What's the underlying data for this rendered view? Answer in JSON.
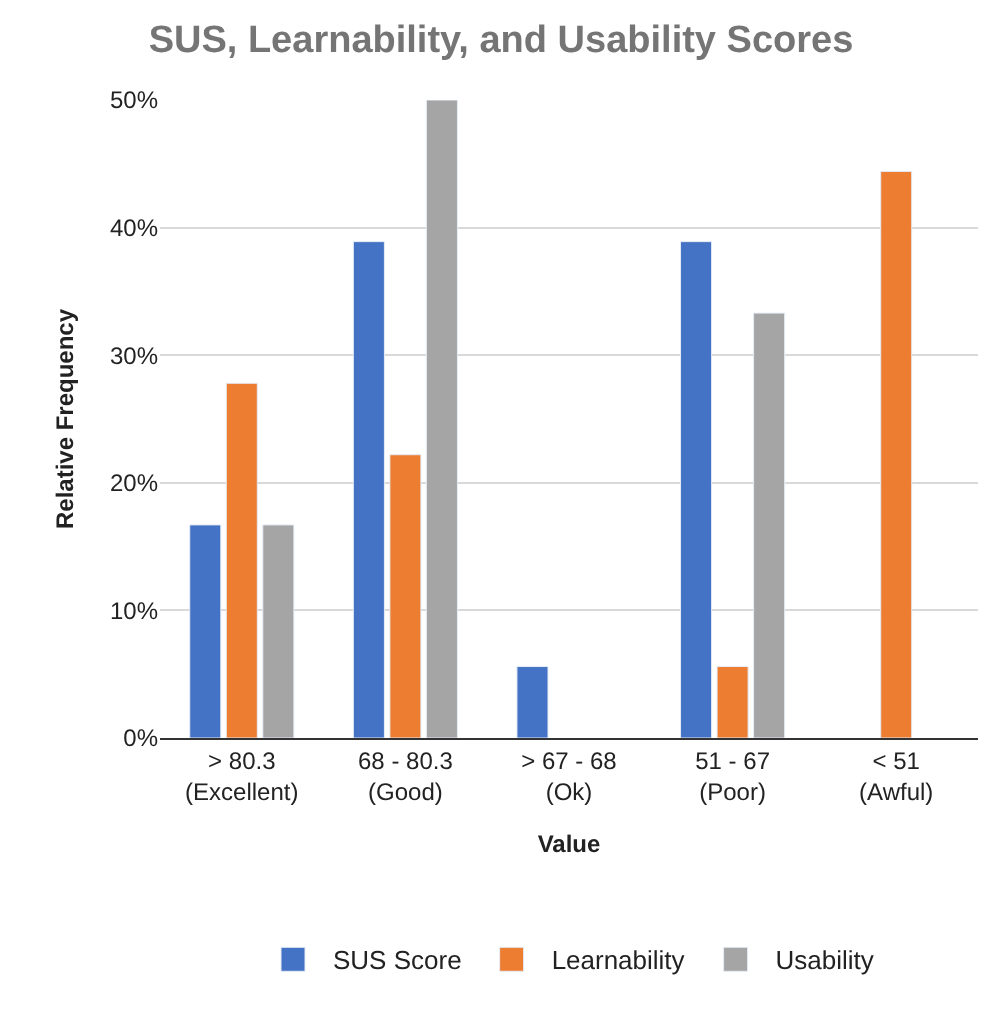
{
  "chart_data": {
    "type": "bar",
    "title": "SUS, Learnability, and Usability Scores",
    "xlabel": "Value",
    "ylabel": "Relative Frequency",
    "categories": [
      "> 80.3\n(Excellent)",
      "68 - 80.3\n(Good)",
      "> 67 - 68\n(Ok)",
      "51 - 67\n(Poor)",
      "< 51\n(Awful)"
    ],
    "series": [
      {
        "name": "SUS Score",
        "color": "#4472c4",
        "values": [
          16.7,
          38.9,
          5.6,
          38.9,
          null
        ]
      },
      {
        "name": "Learnability",
        "color": "#ed7d31",
        "values": [
          27.8,
          22.2,
          null,
          5.6,
          44.4
        ]
      },
      {
        "name": "Usability",
        "color": "#a5a5a5",
        "values": [
          16.7,
          50,
          null,
          33.3,
          null
        ]
      }
    ],
    "ylim": [
      0,
      50
    ],
    "yticks": [
      {
        "value": 0,
        "label": "0%"
      },
      {
        "value": 10,
        "label": "10%"
      },
      {
        "value": 20,
        "label": "20%"
      },
      {
        "value": 30,
        "label": "30%"
      },
      {
        "value": 40,
        "label": "40%"
      },
      {
        "value": 50,
        "label": "50%"
      }
    ],
    "grid": "y",
    "legend": "bottom"
  }
}
